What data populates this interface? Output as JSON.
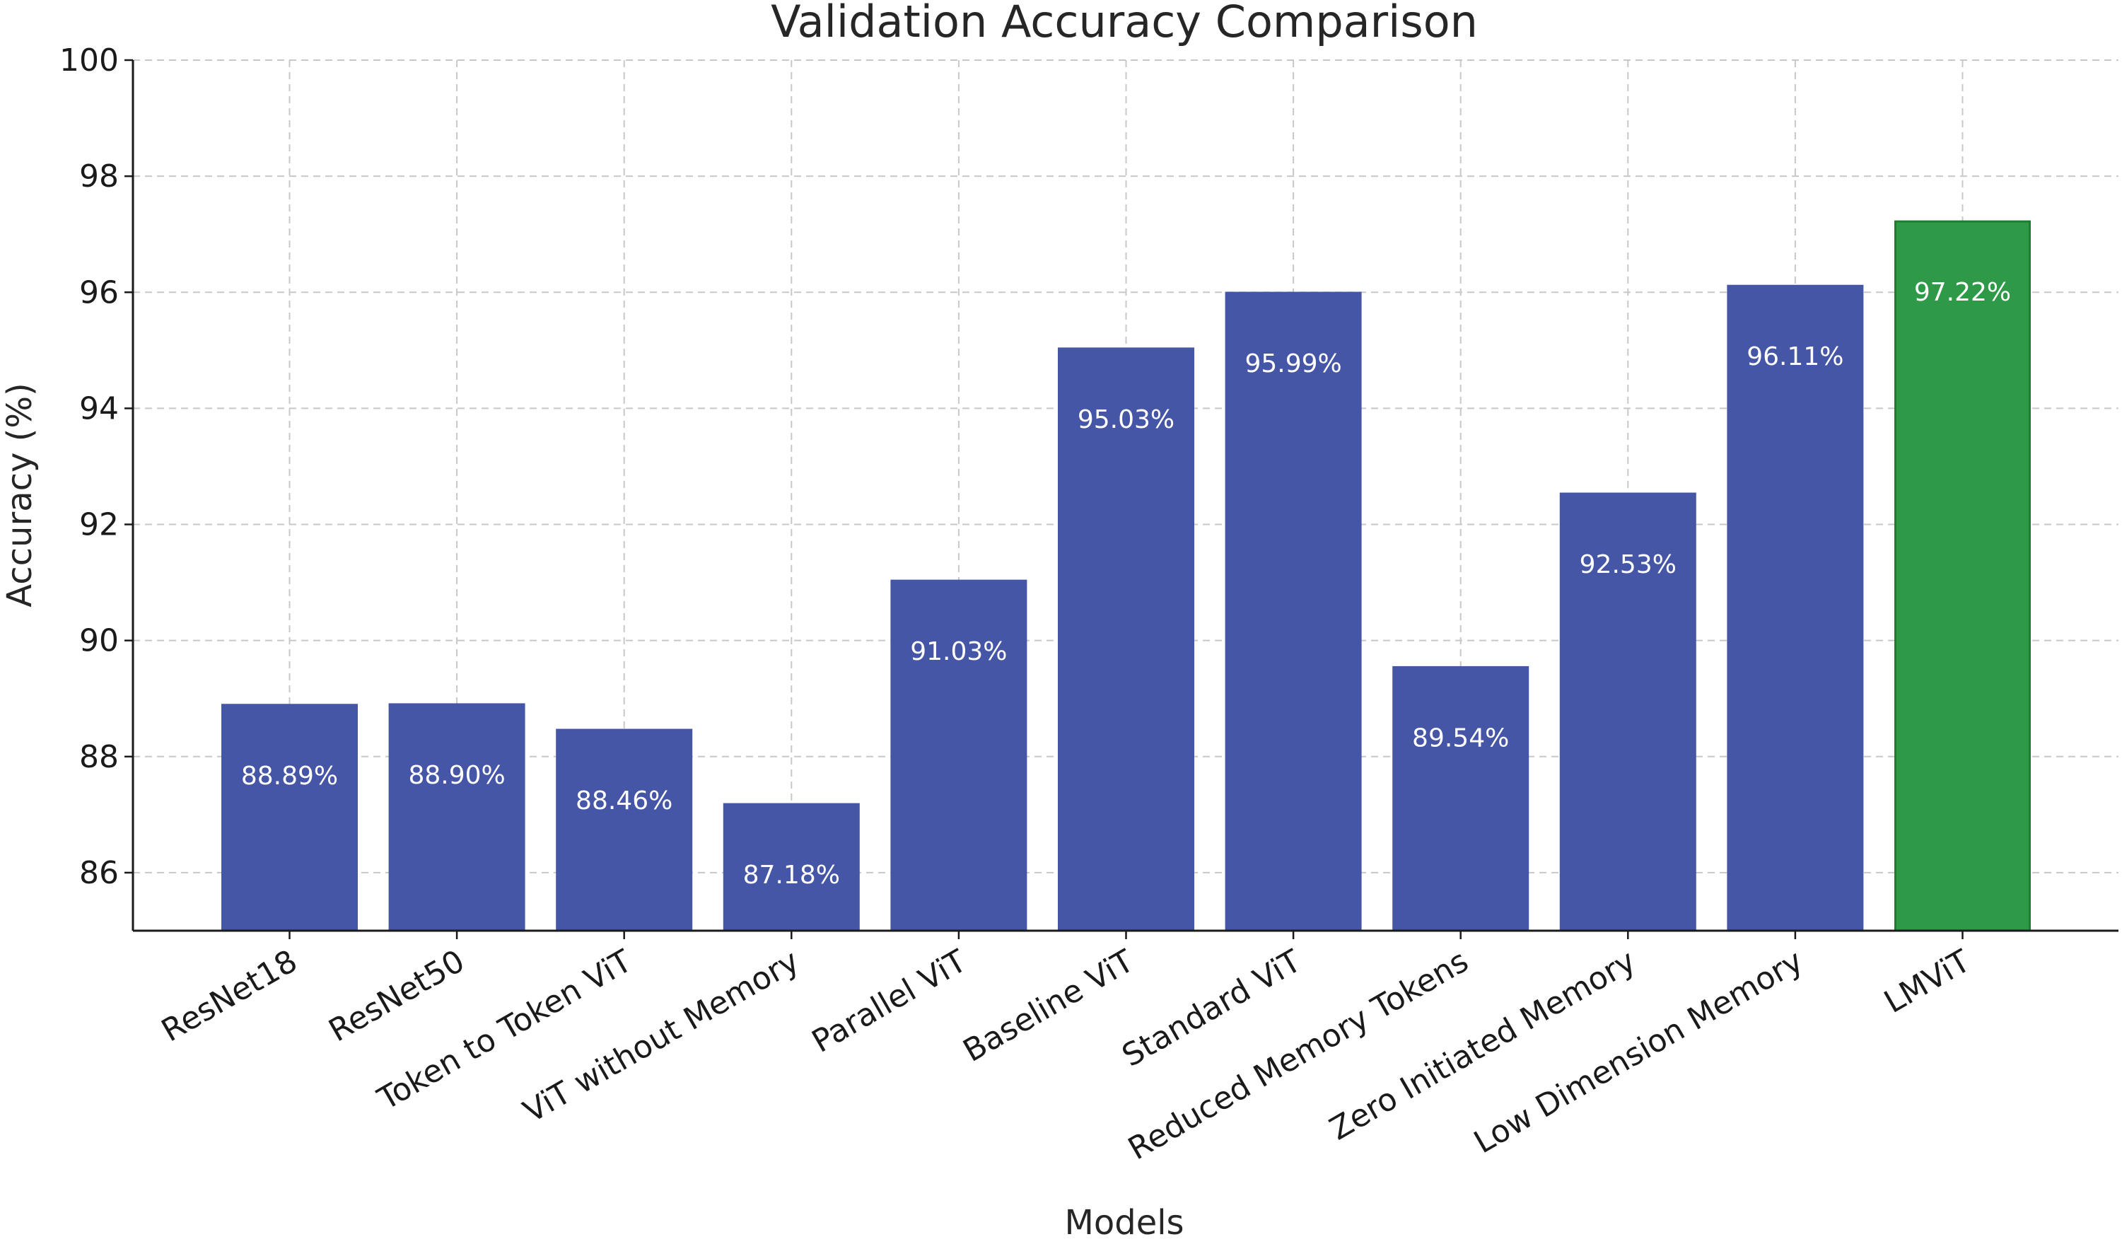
{
  "chart_data": {
    "type": "bar",
    "title": "Validation Accuracy Comparison",
    "xlabel": "Models",
    "ylabel": "Accuracy (%)",
    "ylim": [
      85,
      100
    ],
    "yticks": [
      86,
      88,
      90,
      92,
      94,
      96,
      98,
      100
    ],
    "grid": true,
    "categories": [
      "ResNet18",
      "ResNet50",
      "Token to Token ViT",
      "ViT without Memory",
      "Parallel ViT",
      "Baseline ViT",
      "Standard ViT",
      "Reduced Memory Tokens",
      "Zero Initiated Memory",
      "Low Dimension Memory",
      "LMViT"
    ],
    "values": [
      88.89,
      88.9,
      88.46,
      87.18,
      91.03,
      95.03,
      95.99,
      89.54,
      92.53,
      96.11,
      97.22
    ],
    "data_labels": [
      "88.89%",
      "88.90%",
      "88.46%",
      "87.18%",
      "91.03%",
      "95.03%",
      "95.99%",
      "89.54%",
      "92.53%",
      "96.11%",
      "97.22%"
    ],
    "colors": [
      "#4656a6",
      "#4656a6",
      "#4656a6",
      "#4656a6",
      "#4656a6",
      "#4656a6",
      "#4656a6",
      "#4656a6",
      "#4656a6",
      "#4656a6",
      "#2e9a47"
    ],
    "edge_colors": [
      "#4656a6",
      "#4656a6",
      "#4656a6",
      "#4656a6",
      "#4656a6",
      "#4656a6",
      "#4656a6",
      "#4656a6",
      "#4656a6",
      "#4656a6",
      "#1f7d33"
    ]
  }
}
